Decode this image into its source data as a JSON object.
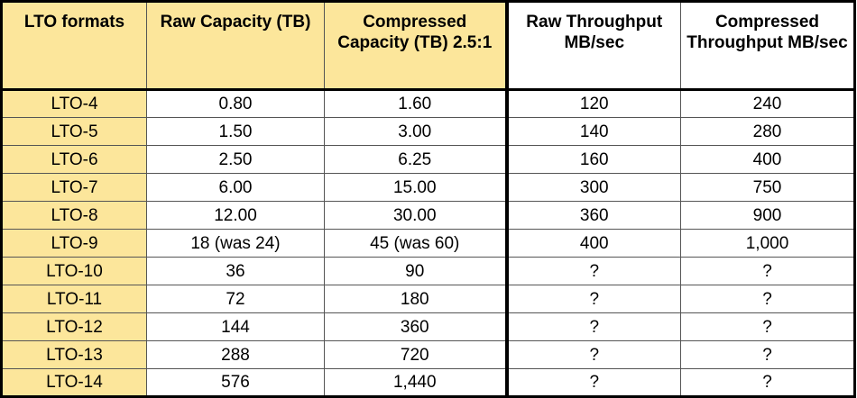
{
  "table": {
    "headers": [
      "LTO formats",
      "Raw Capacity (TB)",
      "Compressed Capacity (TB) 2.5:1",
      "Raw Throughput MB/sec",
      "Compressed Throughput MB/sec"
    ],
    "highlight_color": "#fce69b",
    "rows": [
      [
        "LTO-4",
        "0.80",
        "1.60",
        "120",
        "240"
      ],
      [
        "LTO-5",
        "1.50",
        "3.00",
        "140",
        "280"
      ],
      [
        "LTO-6",
        "2.50",
        "6.25",
        "160",
        "400"
      ],
      [
        "LTO-7",
        "6.00",
        "15.00",
        "300",
        "750"
      ],
      [
        "LTO-8",
        "12.00",
        "30.00",
        "360",
        "900"
      ],
      [
        "LTO-9",
        "18 (was 24)",
        "45 (was 60)",
        "400",
        "1,000"
      ],
      [
        "LTO-10",
        "36",
        "90",
        "?",
        "?"
      ],
      [
        "LTO-11",
        "72",
        "180",
        "?",
        "?"
      ],
      [
        "LTO-12",
        "144",
        "360",
        "?",
        "?"
      ],
      [
        "LTO-13",
        "288",
        "720",
        "?",
        "?"
      ],
      [
        "LTO-14",
        "576",
        "1,440",
        "?",
        "?"
      ]
    ]
  }
}
